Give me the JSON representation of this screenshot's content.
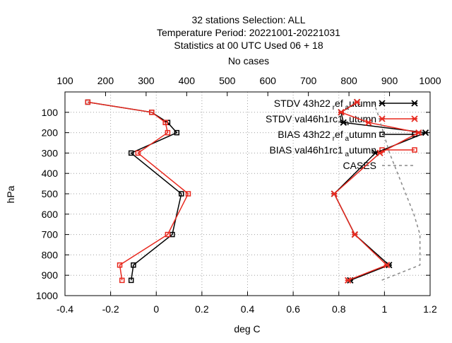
{
  "chart_data": {
    "type": "line",
    "title_lines": [
      "32 stations Selection: ALL",
      "Temperature  Period: 20221001-20221031",
      "Statistics at 00 UTC  Used  06  + 18",
      "No cases"
    ],
    "xlabel": "deg C",
    "ylabel": "hPa",
    "xlim": [
      -0.4,
      1.2
    ],
    "ylim": [
      1000,
      0
    ],
    "x2lim": [
      100,
      1000
    ],
    "xticks": [
      -0.4,
      -0.2,
      0,
      0.2,
      0.4,
      0.6,
      0.8,
      1,
      1.2
    ],
    "xtick_labels": [
      "-0.4",
      "-0.2",
      "0",
      "0.2",
      "0.4",
      "0.6",
      "0.8",
      "1",
      "1.2"
    ],
    "x2ticks": [
      100,
      200,
      300,
      400,
      500,
      600,
      700,
      800,
      900,
      1000
    ],
    "x2tick_labels": [
      "100",
      "200",
      "300",
      "400",
      "500",
      "600",
      "700",
      "800",
      "900",
      "1000"
    ],
    "yticks": [
      100,
      200,
      300,
      400,
      500,
      600,
      700,
      800,
      900,
      1000
    ],
    "ytick_labels": [
      "100",
      "200",
      "300",
      "400",
      "500",
      "600",
      "700",
      "800",
      "900",
      "1000"
    ],
    "grid": true,
    "legend_position": "top-right",
    "series": [
      {
        "name": "STDV 43h22",
        "legend": {
          "main": "STDV 43h22",
          "sub1": "r",
          "mid": "ef",
          "sub2": "a",
          "tail": "utumn"
        },
        "color": "#000000",
        "marker": "star",
        "y": [
          50,
          100,
          150,
          200,
          300,
          500,
          700,
          850,
          925
        ],
        "x": [
          0.88,
          0.81,
          0.82,
          1.18,
          0.96,
          0.78,
          0.87,
          1.02,
          0.85
        ]
      },
      {
        "name": "STDV val46h1rc1",
        "legend": {
          "main": "STDV val46h1rc1",
          "sub1": "",
          "mid": "",
          "sub2": "a",
          "tail": "utumn"
        },
        "color": "#e8281e",
        "marker": "star",
        "y": [
          50,
          100,
          150,
          200,
          300,
          500,
          700,
          850,
          925
        ],
        "x": [
          0.88,
          0.81,
          0.93,
          1.15,
          0.98,
          0.78,
          0.87,
          1.01,
          0.84
        ]
      },
      {
        "name": "BIAS 43h22",
        "legend": {
          "main": "BIAS 43h22",
          "sub1": "r",
          "mid": "ef",
          "sub2": "a",
          "tail": "utumn"
        },
        "color": "#000000",
        "marker": "square",
        "y": [
          50,
          100,
          150,
          200,
          300,
          500,
          700,
          850,
          925
        ],
        "x": [
          -0.3,
          -0.02,
          0.05,
          0.09,
          -0.11,
          0.11,
          0.07,
          -0.1,
          -0.11
        ]
      },
      {
        "name": "BIAS val46h1rc1",
        "legend": {
          "main": "BIAS val46h1rc1",
          "sub1": "",
          "mid": "",
          "sub2": "a",
          "tail": "utumn"
        },
        "color": "#e8281e",
        "marker": "square",
        "y": [
          50,
          100,
          150,
          200,
          300,
          500,
          700,
          850,
          925
        ],
        "x": [
          -0.3,
          -0.02,
          0.04,
          0.05,
          -0.08,
          0.14,
          0.05,
          -0.16,
          -0.15
        ]
      },
      {
        "name": "CASES",
        "legend": {
          "main": "CASES",
          "sub1": "",
          "mid": "",
          "sub2": "",
          "tail": ""
        },
        "color": "#888888",
        "marker": "none",
        "dashed": true,
        "axis": "x2",
        "y": [
          50,
          100,
          200,
          300,
          400,
          500,
          600,
          700,
          850,
          925
        ],
        "x2": [
          860,
          870,
          885,
          900,
          920,
          940,
          960,
          975,
          975,
          880
        ]
      }
    ]
  }
}
